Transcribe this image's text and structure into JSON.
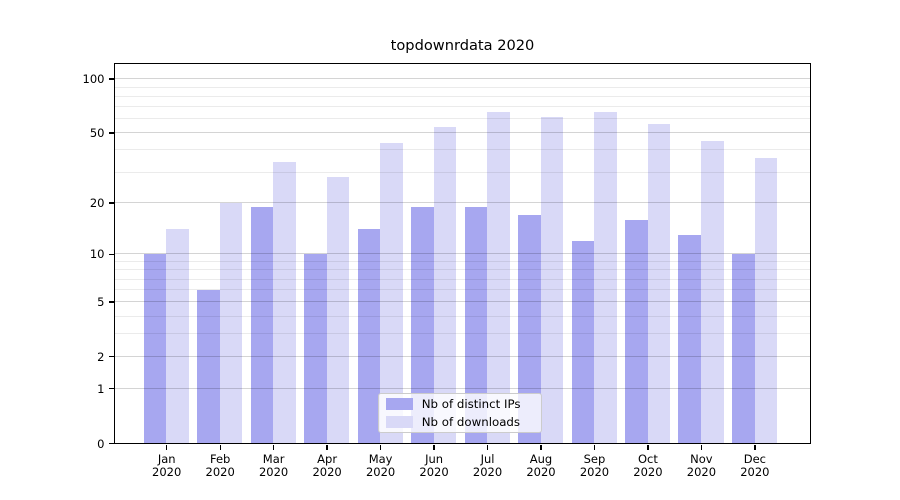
{
  "figure": {
    "background": "#ffffff",
    "text_color": "#000000"
  },
  "chart_data": {
    "type": "bar",
    "title": "topdownrdata 2020",
    "categories": [
      "Jan 2020",
      "Feb 2020",
      "Mar 2020",
      "Apr 2020",
      "May 2020",
      "Jun 2020",
      "Jul 2020",
      "Aug 2020",
      "Sep 2020",
      "Oct 2020",
      "Nov 2020",
      "Dec 2020"
    ],
    "series": [
      {
        "name": "Nb of distinct IPs",
        "color": "#a7a7f0",
        "values": [
          10,
          6,
          19,
          10,
          14,
          19,
          19,
          17,
          12,
          16,
          13,
          10
        ]
      },
      {
        "name": "Nb of downloads",
        "color": "#d9d9f7",
        "values": [
          14,
          20,
          34,
          28,
          44,
          54,
          65,
          61,
          65,
          56,
          45,
          36
        ]
      }
    ],
    "xlabel": "",
    "ylabel": "",
    "yscale": "log1p",
    "ylim": [
      0,
      121
    ],
    "yticks_major": [
      0,
      1,
      2,
      5,
      10,
      20,
      50,
      100
    ],
    "yticks_minor": [
      3,
      4,
      6,
      7,
      8,
      9,
      30,
      40,
      60,
      70,
      80,
      90
    ],
    "grid": "horizontal major+minor, drawn over bars",
    "legend_position": "inside lower-center-left",
    "grid_major_color": "#d4d4d4",
    "grid_minor_color": "#ebebeb"
  }
}
